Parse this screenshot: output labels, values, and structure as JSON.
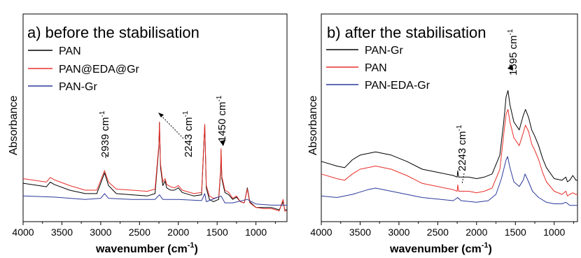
{
  "chart_data": [
    {
      "type": "line",
      "panel_label": "a) before the stabilisation",
      "xlabel": "wavenumber (cm",
      "xlabel_sup": "-1",
      "xlabel_close": ")",
      "ylabel": "Absorbance",
      "xlim": [
        4000,
        600
      ],
      "ylim": [
        0,
        1
      ],
      "x_reversed": true,
      "xticks": [
        4000,
        3500,
        3000,
        2500,
        2000,
        1500,
        1000
      ],
      "grid": false,
      "legend_position": "top-left",
      "series": [
        {
          "name": "PAN",
          "color": "#000000",
          "points": [
            [
              4000,
              0.26
            ],
            [
              3800,
              0.24
            ],
            [
              3700,
              0.23
            ],
            [
              3650,
              0.27
            ],
            [
              3600,
              0.25
            ],
            [
              3400,
              0.2
            ],
            [
              3200,
              0.17
            ],
            [
              3050,
              0.17
            ],
            [
              2950,
              0.35
            ],
            [
              2900,
              0.24
            ],
            [
              2800,
              0.17
            ],
            [
              2600,
              0.16
            ],
            [
              2400,
              0.15
            ],
            [
              2300,
              0.17
            ],
            [
              2250,
              0.58
            ],
            [
              2243,
              0.79
            ],
            [
              2230,
              0.4
            ],
            [
              2200,
              0.24
            ],
            [
              2170,
              0.28
            ],
            [
              2150,
              0.22
            ],
            [
              2100,
              0.2
            ],
            [
              2050,
              0.2
            ],
            [
              2000,
              0.22
            ],
            [
              1950,
              0.18
            ],
            [
              1800,
              0.15
            ],
            [
              1700,
              0.16
            ],
            [
              1670,
              0.62
            ],
            [
              1660,
              0.77
            ],
            [
              1640,
              0.22
            ],
            [
              1600,
              0.12
            ],
            [
              1550,
              0.1
            ],
            [
              1480,
              0.12
            ],
            [
              1455,
              0.36
            ],
            [
              1450,
              0.54
            ],
            [
              1440,
              0.3
            ],
            [
              1400,
              0.18
            ],
            [
              1350,
              0.16
            ],
            [
              1300,
              0.12
            ],
            [
              1250,
              0.14
            ],
            [
              1200,
              0.1
            ],
            [
              1150,
              0.09
            ],
            [
              1110,
              0.22
            ],
            [
              1080,
              0.1
            ],
            [
              1000,
              0.05
            ],
            [
              900,
              0.05
            ],
            [
              800,
              0.05
            ],
            [
              700,
              0.03
            ],
            [
              650,
              0.1
            ],
            [
              630,
              0.03
            ],
            [
              600,
              0.03
            ]
          ]
        },
        {
          "name": "PAN@EDA@Gr",
          "color": "#e8302a",
          "points": [
            [
              4000,
              0.3
            ],
            [
              3800,
              0.28
            ],
            [
              3700,
              0.27
            ],
            [
              3650,
              0.31
            ],
            [
              3600,
              0.29
            ],
            [
              3400,
              0.24
            ],
            [
              3200,
              0.2
            ],
            [
              3050,
              0.2
            ],
            [
              2950,
              0.37
            ],
            [
              2900,
              0.27
            ],
            [
              2800,
              0.21
            ],
            [
              2600,
              0.2
            ],
            [
              2400,
              0.19
            ],
            [
              2300,
              0.21
            ],
            [
              2250,
              0.6
            ],
            [
              2243,
              0.79
            ],
            [
              2230,
              0.43
            ],
            [
              2200,
              0.27
            ],
            [
              2170,
              0.3
            ],
            [
              2150,
              0.25
            ],
            [
              2100,
              0.23
            ],
            [
              2050,
              0.22
            ],
            [
              2000,
              0.24
            ],
            [
              1950,
              0.2
            ],
            [
              1800,
              0.17
            ],
            [
              1700,
              0.18
            ],
            [
              1670,
              0.63
            ],
            [
              1660,
              0.77
            ],
            [
              1640,
              0.24
            ],
            [
              1600,
              0.15
            ],
            [
              1550,
              0.13
            ],
            [
              1480,
              0.14
            ],
            [
              1455,
              0.38
            ],
            [
              1450,
              0.56
            ],
            [
              1440,
              0.32
            ],
            [
              1400,
              0.2
            ],
            [
              1350,
              0.18
            ],
            [
              1300,
              0.13
            ],
            [
              1250,
              0.15
            ],
            [
              1200,
              0.1
            ],
            [
              1150,
              0.09
            ],
            [
              1110,
              0.21
            ],
            [
              1080,
              0.09
            ],
            [
              1000,
              0.05
            ],
            [
              900,
              0.04
            ],
            [
              800,
              0.04
            ],
            [
              700,
              0.02
            ],
            [
              650,
              0.12
            ],
            [
              630,
              0.02
            ],
            [
              600,
              0.02
            ]
          ]
        },
        {
          "name": "PAN-Gr",
          "color": "#2b3a9a",
          "points": [
            [
              4000,
              0.15
            ],
            [
              3600,
              0.14
            ],
            [
              3200,
              0.12
            ],
            [
              3000,
              0.13
            ],
            [
              2950,
              0.17
            ],
            [
              2900,
              0.13
            ],
            [
              2600,
              0.12
            ],
            [
              2300,
              0.12
            ],
            [
              2243,
              0.16
            ],
            [
              2200,
              0.12
            ],
            [
              2000,
              0.12
            ],
            [
              1700,
              0.11
            ],
            [
              1660,
              0.17
            ],
            [
              1640,
              0.1
            ],
            [
              1450,
              0.15
            ],
            [
              1400,
              0.09
            ],
            [
              1300,
              0.09
            ],
            [
              1110,
              0.12
            ],
            [
              1000,
              0.08
            ],
            [
              800,
              0.07
            ],
            [
              600,
              0.07
            ]
          ]
        }
      ],
      "annotations": [
        {
          "text": "2939 cm",
          "sup": "-1",
          "x": 2939
        },
        {
          "text": "2243 cm",
          "sup": "-1",
          "x": 2243
        },
        {
          "text": "1450 cm",
          "sup": "-1",
          "x": 1450
        }
      ]
    },
    {
      "type": "line",
      "panel_label": "b) after the stabilisation",
      "xlabel": "wavenumber (cm",
      "xlabel_sup": "-1",
      "xlabel_close": ")",
      "ylabel": "Absorbance",
      "xlim": [
        4000,
        700
      ],
      "ylim": [
        0,
        1
      ],
      "x_reversed": true,
      "xticks": [
        4000,
        3500,
        3000,
        2500,
        2000,
        1500,
        1000
      ],
      "grid": false,
      "legend_position": "top-left",
      "series": [
        {
          "name": "PAN-Gr",
          "color": "#000000",
          "points": [
            [
              4000,
              0.33
            ],
            [
              3800,
              0.3
            ],
            [
              3700,
              0.29
            ],
            [
              3600,
              0.34
            ],
            [
              3500,
              0.37
            ],
            [
              3300,
              0.39
            ],
            [
              3100,
              0.37
            ],
            [
              2900,
              0.33
            ],
            [
              2700,
              0.28
            ],
            [
              2500,
              0.26
            ],
            [
              2300,
              0.24
            ],
            [
              2250,
              0.23
            ],
            [
              2243,
              0.27
            ],
            [
              2230,
              0.23
            ],
            [
              2100,
              0.23
            ],
            [
              2000,
              0.22
            ],
            [
              1900,
              0.23
            ],
            [
              1800,
              0.25
            ],
            [
              1700,
              0.37
            ],
            [
              1650,
              0.58
            ],
            [
              1620,
              0.74
            ],
            [
              1595,
              0.78
            ],
            [
              1570,
              0.69
            ],
            [
              1520,
              0.58
            ],
            [
              1450,
              0.53
            ],
            [
              1400,
              0.62
            ],
            [
              1370,
              0.66
            ],
            [
              1330,
              0.61
            ],
            [
              1290,
              0.53
            ],
            [
              1250,
              0.49
            ],
            [
              1200,
              0.43
            ],
            [
              1150,
              0.35
            ],
            [
              1100,
              0.29
            ],
            [
              1000,
              0.22
            ],
            [
              900,
              0.21
            ],
            [
              850,
              0.23
            ],
            [
              830,
              0.2
            ],
            [
              800,
              0.21
            ],
            [
              760,
              0.24
            ],
            [
              720,
              0.21
            ],
            [
              700,
              0.21
            ]
          ]
        },
        {
          "name": "PAN",
          "color": "#e8302a",
          "points": [
            [
              4000,
              0.25
            ],
            [
              3800,
              0.22
            ],
            [
              3700,
              0.21
            ],
            [
              3600,
              0.25
            ],
            [
              3500,
              0.28
            ],
            [
              3300,
              0.3
            ],
            [
              3100,
              0.28
            ],
            [
              2900,
              0.24
            ],
            [
              2700,
              0.19
            ],
            [
              2500,
              0.17
            ],
            [
              2300,
              0.15
            ],
            [
              2250,
              0.14
            ],
            [
              2243,
              0.18
            ],
            [
              2230,
              0.14
            ],
            [
              2100,
              0.14
            ],
            [
              2000,
              0.13
            ],
            [
              1900,
              0.14
            ],
            [
              1800,
              0.16
            ],
            [
              1700,
              0.28
            ],
            [
              1650,
              0.5
            ],
            [
              1620,
              0.63
            ],
            [
              1595,
              0.66
            ],
            [
              1570,
              0.58
            ],
            [
              1520,
              0.48
            ],
            [
              1450,
              0.43
            ],
            [
              1400,
              0.51
            ],
            [
              1370,
              0.56
            ],
            [
              1330,
              0.52
            ],
            [
              1290,
              0.44
            ],
            [
              1250,
              0.4
            ],
            [
              1200,
              0.34
            ],
            [
              1150,
              0.26
            ],
            [
              1100,
              0.2
            ],
            [
              1000,
              0.14
            ],
            [
              900,
              0.12
            ],
            [
              850,
              0.14
            ],
            [
              830,
              0.11
            ],
            [
              800,
              0.12
            ],
            [
              760,
              0.13
            ],
            [
              720,
              0.12
            ],
            [
              700,
              0.12
            ]
          ]
        },
        {
          "name": "PAN-EDA-Gr",
          "color": "#2b3a9a",
          "points": [
            [
              4000,
              0.11
            ],
            [
              3800,
              0.1
            ],
            [
              3600,
              0.12
            ],
            [
              3400,
              0.15
            ],
            [
              3300,
              0.16
            ],
            [
              3100,
              0.14
            ],
            [
              2900,
              0.12
            ],
            [
              2700,
              0.1
            ],
            [
              2500,
              0.09
            ],
            [
              2300,
              0.08
            ],
            [
              2243,
              0.1
            ],
            [
              2200,
              0.08
            ],
            [
              2000,
              0.07
            ],
            [
              1850,
              0.08
            ],
            [
              1750,
              0.12
            ],
            [
              1680,
              0.22
            ],
            [
              1620,
              0.34
            ],
            [
              1600,
              0.36
            ],
            [
              1570,
              0.29
            ],
            [
              1520,
              0.2
            ],
            [
              1450,
              0.17
            ],
            [
              1400,
              0.21
            ],
            [
              1375,
              0.25
            ],
            [
              1330,
              0.2
            ],
            [
              1280,
              0.14
            ],
            [
              1200,
              0.1
            ],
            [
              1100,
              0.07
            ],
            [
              1000,
              0.06
            ],
            [
              900,
              0.06
            ],
            [
              850,
              0.07
            ],
            [
              800,
              0.05
            ],
            [
              700,
              0.05
            ]
          ]
        }
      ],
      "annotations": [
        {
          "text": "2243 cm",
          "sup": "-1",
          "x": 2243
        },
        {
          "text": "1595 cm",
          "sup": "-1",
          "x": 1595
        }
      ]
    }
  ]
}
